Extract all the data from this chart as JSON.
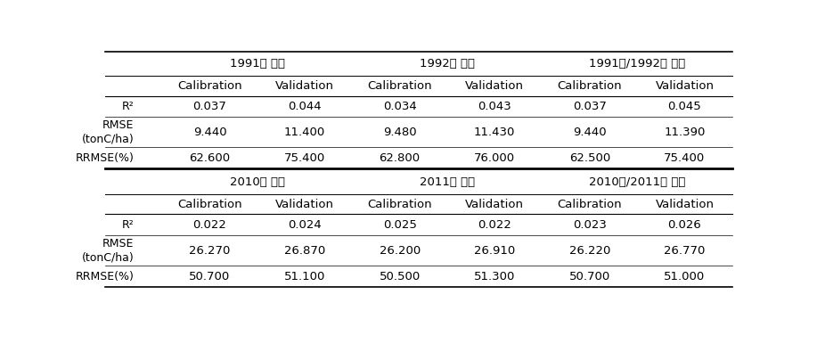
{
  "top_group_headers": [
    "1991년 변수",
    "1992년 변수",
    "1991년/1992년 변수"
  ],
  "bottom_group_headers": [
    "2010년 변수",
    "2011년 변수",
    "2010년/2011년 변수"
  ],
  "sub_headers": [
    "Calibration",
    "Validation"
  ],
  "row_labels_top": [
    "R²",
    "RMSE\n(tonC/ha)",
    "RRMSE(%)"
  ],
  "row_labels_bot": [
    "R²",
    "RMSE\n(tonC/ha)",
    "RRMSE(%)"
  ],
  "top_data": [
    [
      "0.037",
      "0.044",
      "0.034",
      "0.043",
      "0.037",
      "0.045"
    ],
    [
      "9.440",
      "11.400",
      "9.480",
      "11.430",
      "9.440",
      "11.390"
    ],
    [
      "62.600",
      "75.400",
      "62.800",
      "76.000",
      "62.500",
      "75.400"
    ]
  ],
  "bottom_data": [
    [
      "0.022",
      "0.024",
      "0.025",
      "0.022",
      "0.023",
      "0.026"
    ],
    [
      "26.270",
      "26.870",
      "26.200",
      "26.910",
      "26.220",
      "26.770"
    ],
    [
      "50.700",
      "51.100",
      "50.500",
      "51.300",
      "50.700",
      "51.000"
    ]
  ],
  "bg_color": "#ffffff",
  "line_color": "#000000",
  "text_color": "#000000",
  "fontsize_group": 9.5,
  "fontsize_sub": 9.5,
  "fontsize_data": 9.5,
  "fontsize_row_label": 9.0
}
